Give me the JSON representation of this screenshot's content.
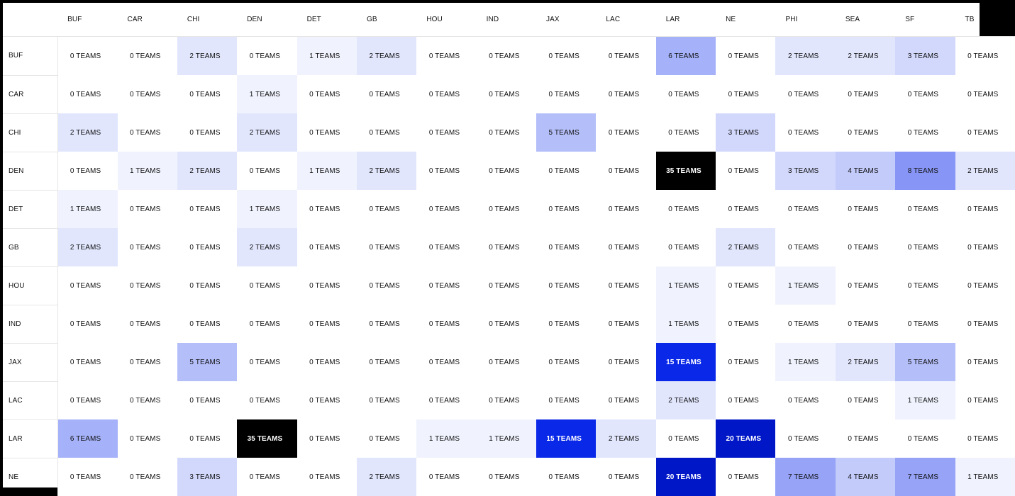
{
  "chart_data": {
    "type": "heatmap",
    "teams": [
      "BUF",
      "CAR",
      "CHI",
      "DEN",
      "DET",
      "GB",
      "HOU",
      "IND",
      "JAX",
      "LAC",
      "LAR",
      "NE",
      "PHI",
      "SEA",
      "SF",
      "TB"
    ],
    "value_suffix": "TEAMS",
    "rows": [
      {
        "team": "BUF",
        "values": [
          0,
          0,
          2,
          0,
          1,
          2,
          0,
          0,
          0,
          0,
          6,
          0,
          2,
          2,
          3,
          0
        ]
      },
      {
        "team": "CAR",
        "values": [
          0,
          0,
          0,
          1,
          0,
          0,
          0,
          0,
          0,
          0,
          0,
          0,
          0,
          0,
          0,
          0
        ]
      },
      {
        "team": "CHI",
        "values": [
          2,
          0,
          0,
          2,
          0,
          0,
          0,
          0,
          5,
          0,
          0,
          3,
          0,
          0,
          0,
          0
        ]
      },
      {
        "team": "DEN",
        "values": [
          0,
          1,
          2,
          0,
          1,
          2,
          0,
          0,
          0,
          0,
          35,
          0,
          3,
          4,
          8,
          2
        ]
      },
      {
        "team": "DET",
        "values": [
          1,
          0,
          0,
          1,
          0,
          0,
          0,
          0,
          0,
          0,
          0,
          0,
          0,
          0,
          0,
          0
        ]
      },
      {
        "team": "GB",
        "values": [
          2,
          0,
          0,
          2,
          0,
          0,
          0,
          0,
          0,
          0,
          0,
          2,
          0,
          0,
          0,
          0
        ]
      },
      {
        "team": "HOU",
        "values": [
          0,
          0,
          0,
          0,
          0,
          0,
          0,
          0,
          0,
          0,
          1,
          0,
          1,
          0,
          0,
          0
        ]
      },
      {
        "team": "IND",
        "values": [
          0,
          0,
          0,
          0,
          0,
          0,
          0,
          0,
          0,
          0,
          1,
          0,
          0,
          0,
          0,
          0
        ]
      },
      {
        "team": "JAX",
        "values": [
          0,
          0,
          5,
          0,
          0,
          0,
          0,
          0,
          0,
          0,
          15,
          0,
          1,
          2,
          5,
          0
        ]
      },
      {
        "team": "LAC",
        "values": [
          0,
          0,
          0,
          0,
          0,
          0,
          0,
          0,
          0,
          0,
          2,
          0,
          0,
          0,
          1,
          0
        ]
      },
      {
        "team": "LAR",
        "values": [
          6,
          0,
          0,
          35,
          0,
          0,
          1,
          1,
          15,
          2,
          0,
          20,
          0,
          0,
          0,
          0
        ]
      },
      {
        "team": "NE",
        "values": [
          0,
          0,
          3,
          0,
          0,
          2,
          0,
          0,
          0,
          0,
          20,
          0,
          7,
          4,
          7,
          1
        ]
      }
    ],
    "colors": {
      "zero": "#ffffff",
      "scale_low": "#f0f3fe",
      "scale_mid": "#8796f6",
      "scale_high": "#0a28e8",
      "scale_deep": "#0017c8",
      "max": "#000000"
    }
  }
}
